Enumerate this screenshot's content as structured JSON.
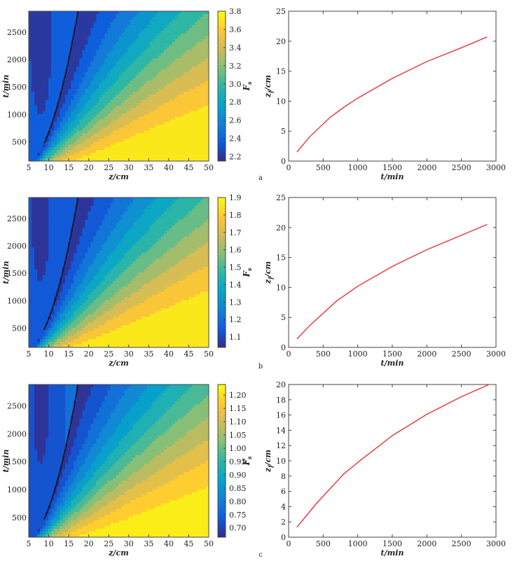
{
  "chart_data": [
    {
      "type": "heatmap",
      "panel": "a",
      "xlabel": "z/cm",
      "ylabel": "t/min",
      "colorbar_label": "F_s",
      "xlim": [
        5,
        50
      ],
      "ylim": [
        150,
        2880
      ],
      "xticks": [
        "5",
        "10",
        "15",
        "20",
        "25",
        "30",
        "35",
        "40",
        "45",
        "50"
      ],
      "yticks": [
        "500",
        "1000",
        "1500",
        "2000",
        "2500"
      ],
      "colorbar_range": [
        2.15,
        3.8
      ],
      "colorbar_ticks": [
        "2.2",
        "2.4",
        "2.6",
        "2.8",
        "3.0",
        "3.2",
        "3.4",
        "3.6",
        "3.8"
      ],
      "contour_levels": [
        2.3,
        2.45,
        2.6,
        2.75,
        2.9,
        3.05,
        3.2,
        3.35,
        3.5,
        3.65
      ],
      "colormap": [
        "#352a87",
        "#0f5cdd",
        "#1481d6",
        "#06a4ca",
        "#2eb7a4",
        "#87bf77",
        "#d1bb59",
        "#fec832",
        "#f9fb0e"
      ]
    },
    {
      "type": "line",
      "panel": "a",
      "xlabel": "t/min",
      "ylabel": "z_f/cm",
      "xlim": [
        0,
        3000
      ],
      "ylim": [
        0,
        25
      ],
      "xticks": [
        "0",
        "500",
        "1000",
        "1500",
        "2000",
        "2500",
        "3000"
      ],
      "yticks": [
        "0",
        "5",
        "10",
        "15",
        "20",
        "25"
      ],
      "color": "#e8353a",
      "x": [
        120,
        300,
        600,
        800,
        1000,
        1500,
        2000,
        2500,
        2870
      ],
      "y": [
        1.5,
        4.0,
        7.3,
        9.0,
        10.5,
        13.8,
        16.6,
        18.9,
        20.7
      ]
    },
    {
      "type": "heatmap",
      "panel": "b",
      "xlabel": "z/cm",
      "ylabel": "t/min",
      "colorbar_label": "F_s",
      "xlim": [
        5,
        50
      ],
      "ylim": [
        150,
        2880
      ],
      "xticks": [
        "5",
        "10",
        "15",
        "20",
        "25",
        "30",
        "35",
        "40",
        "45",
        "50"
      ],
      "yticks": [
        "500",
        "1000",
        "1500",
        "2000",
        "2500"
      ],
      "colorbar_range": [
        1.04,
        1.9
      ],
      "colorbar_ticks": [
        "1.1",
        "1.2",
        "1.3",
        "1.4",
        "1.5",
        "1.6",
        "1.7",
        "1.8",
        "1.9"
      ],
      "contour_levels": [
        1.1,
        1.18,
        1.26,
        1.34,
        1.42,
        1.5,
        1.58,
        1.66,
        1.74,
        1.82
      ],
      "colormap": [
        "#352a87",
        "#0f5cdd",
        "#1481d6",
        "#06a4ca",
        "#2eb7a4",
        "#87bf77",
        "#d1bb59",
        "#fec832",
        "#f9fb0e"
      ]
    },
    {
      "type": "line",
      "panel": "b",
      "xlabel": "t/min",
      "ylabel": "z_f/cm",
      "xlim": [
        0,
        3000
      ],
      "ylim": [
        0,
        25
      ],
      "xticks": [
        "0",
        "500",
        "1000",
        "1500",
        "2000",
        "2500",
        "3000"
      ],
      "yticks": [
        "0",
        "5",
        "10",
        "15",
        "20",
        "25"
      ],
      "color": "#e8353a",
      "x": [
        120,
        300,
        700,
        1000,
        1500,
        2000,
        2500,
        2870
      ],
      "y": [
        1.4,
        3.6,
        7.8,
        10.2,
        13.5,
        16.3,
        18.7,
        20.5
      ]
    },
    {
      "type": "heatmap",
      "panel": "c",
      "xlabel": "z/cm",
      "ylabel": "t/min",
      "colorbar_label": "F_s",
      "xlim": [
        5,
        50
      ],
      "ylim": [
        150,
        2880
      ],
      "xticks": [
        "5",
        "10",
        "15",
        "20",
        "25",
        "30",
        "35",
        "40",
        "45",
        "50"
      ],
      "yticks": [
        "500",
        "1000",
        "1500",
        "2000",
        "2500"
      ],
      "colorbar_range": [
        0.665,
        1.24
      ],
      "colorbar_ticks": [
        "0.70",
        "0.75",
        "0.80",
        "0.85",
        "0.90",
        "0.95",
        "1.00",
        "1.05",
        "1.10",
        "1.15",
        "1.20"
      ],
      "contour_levels": [
        0.7,
        0.75,
        0.8,
        0.85,
        0.9,
        0.95,
        1.0,
        1.05,
        1.1,
        1.15,
        1.2
      ],
      "colormap": [
        "#352a87",
        "#0f5cdd",
        "#1481d6",
        "#06a4ca",
        "#2eb7a4",
        "#87bf77",
        "#d1bb59",
        "#fec832",
        "#f9fb0e"
      ]
    },
    {
      "type": "line",
      "panel": "c",
      "xlabel": "t/min",
      "ylabel": "z_f/cm",
      "xlim": [
        0,
        3000
      ],
      "ylim": [
        0,
        20
      ],
      "xticks": [
        "0",
        "500",
        "1000",
        "1500",
        "2000",
        "2500",
        "3000"
      ],
      "yticks": [
        "0",
        "2",
        "4",
        "6",
        "8",
        "10",
        "12",
        "14",
        "16",
        "18",
        "20"
      ],
      "color": "#e8353a",
      "x": [
        120,
        400,
        800,
        1000,
        1500,
        2000,
        2500,
        2900
      ],
      "y": [
        1.3,
        4.4,
        8.3,
        9.8,
        13.3,
        16.1,
        18.4,
        20.0
      ]
    }
  ],
  "panel_labels": [
    "a",
    "b",
    "c"
  ]
}
